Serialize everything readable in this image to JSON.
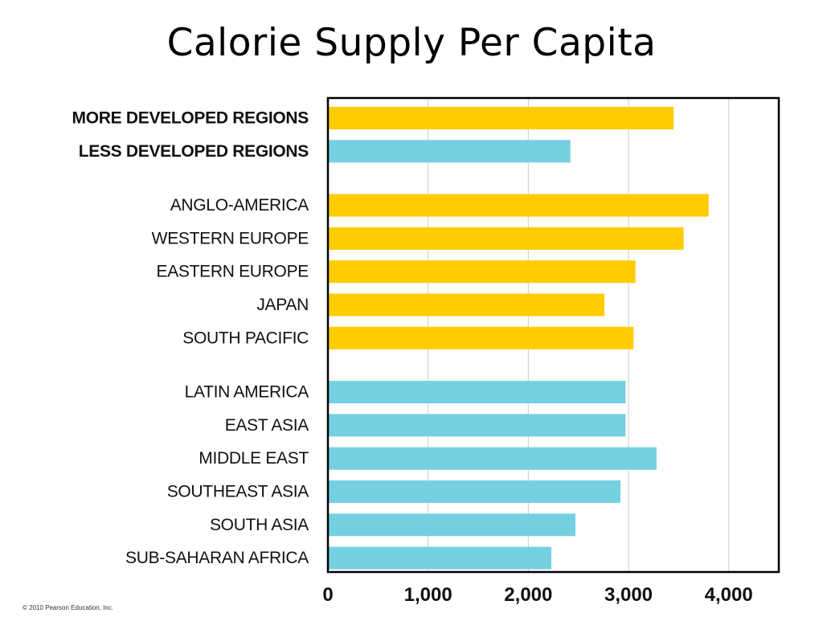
{
  "slide": {
    "title": "Calorie Supply Per Capita",
    "copyright": "© 2010 Pearson Education, Inc."
  },
  "colors": {
    "developed": "#FFCC00",
    "less_developed": "#74D0E1",
    "gridline": "#CCCCCC",
    "frame": "#000000"
  },
  "chart_data": {
    "type": "bar",
    "orientation": "horizontal",
    "title": "Calorie Supply Per Capita",
    "xlabel": "",
    "ylabel": "",
    "xlim": [
      0,
      4500
    ],
    "xticks": [
      0,
      1000,
      2000,
      3000,
      4000
    ],
    "xtick_labels": [
      "0",
      "1,000",
      "2,000",
      "3,000",
      "4,000"
    ],
    "grid": true,
    "legend": "none",
    "groups": [
      {
        "bars": [
          {
            "category": "MORE DEVELOPED REGIONS",
            "value": 3450,
            "group": "developed",
            "bold": true
          },
          {
            "category": "LESS DEVELOPED REGIONS",
            "value": 2420,
            "group": "less_developed",
            "bold": true
          }
        ]
      },
      {
        "bars": [
          {
            "category": "ANGLO-AMERICA",
            "value": 3800,
            "group": "developed",
            "bold": false
          },
          {
            "category": "WESTERN EUROPE",
            "value": 3550,
            "group": "developed",
            "bold": false
          },
          {
            "category": "EASTERN EUROPE",
            "value": 3070,
            "group": "developed",
            "bold": false
          },
          {
            "category": "JAPAN",
            "value": 2760,
            "group": "developed",
            "bold": false
          },
          {
            "category": "SOUTH PACIFIC",
            "value": 3050,
            "group": "developed",
            "bold": false
          }
        ]
      },
      {
        "bars": [
          {
            "category": "LATIN AMERICA",
            "value": 2970,
            "group": "less_developed",
            "bold": false
          },
          {
            "category": "EAST ASIA",
            "value": 2970,
            "group": "less_developed",
            "bold": false
          },
          {
            "category": "MIDDLE EAST",
            "value": 3280,
            "group": "less_developed",
            "bold": false
          },
          {
            "category": "SOUTHEAST ASIA",
            "value": 2920,
            "group": "less_developed",
            "bold": false
          },
          {
            "category": "SOUTH ASIA",
            "value": 2470,
            "group": "less_developed",
            "bold": false
          },
          {
            "category": "SUB-SAHARAN AFRICA",
            "value": 2230,
            "group": "less_developed",
            "bold": false
          }
        ]
      }
    ]
  }
}
